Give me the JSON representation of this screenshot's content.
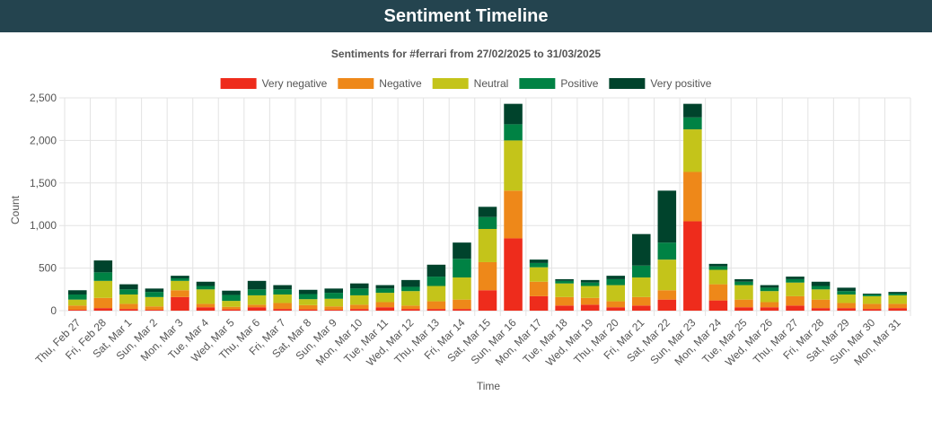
{
  "header": {
    "title": "Sentiment Timeline"
  },
  "chart_data": {
    "type": "bar",
    "stacked": true,
    "title": "Sentiments for #ferrari from 27/02/2025 to 31/03/2025",
    "xlabel": "Time",
    "ylabel": "Count",
    "ylim": [
      0,
      2500
    ],
    "yticks": [
      0,
      500,
      1000,
      1500,
      2000,
      2500
    ],
    "ytick_labels": [
      "0",
      "500",
      "1,000",
      "1,500",
      "2,000",
      "2,500"
    ],
    "grid": true,
    "legend_position": "top",
    "categories": [
      "Thu, Feb 27",
      "Fri, Feb 28",
      "Sat, Mar 1",
      "Sun, Mar 2",
      "Mon, Mar 3",
      "Tue, Mar 4",
      "Wed, Mar 5",
      "Thu, Mar 6",
      "Fri, Mar 7",
      "Sat, Mar 8",
      "Sun, Mar 9",
      "Mon, Mar 10",
      "Tue, Mar 11",
      "Wed, Mar 12",
      "Thu, Mar 13",
      "Fri, Mar 14",
      "Sat, Mar 15",
      "Sun, Mar 16",
      "Mon, Mar 17",
      "Tue, Mar 18",
      "Wed, Mar 19",
      "Thu, Mar 20",
      "Fri, Mar 21",
      "Sat, Mar 22",
      "Sun, Mar 23",
      "Mon, Mar 24",
      "Tue, Mar 25",
      "Wed, Mar 26",
      "Thu, Mar 27",
      "Fri, Mar 28",
      "Sat, Mar 29",
      "Sun, Mar 30",
      "Mon, Mar 31"
    ],
    "series": [
      {
        "name": "Very negative",
        "color": "#ee2c1c",
        "values": [
          10,
          30,
          20,
          10,
          160,
          40,
          15,
          40,
          20,
          15,
          10,
          20,
          40,
          20,
          20,
          20,
          240,
          850,
          170,
          60,
          70,
          40,
          60,
          130,
          1050,
          120,
          40,
          40,
          60,
          30,
          30,
          20,
          30
        ]
      },
      {
        "name": "Negative",
        "color": "#ee8819",
        "values": [
          50,
          120,
          60,
          40,
          80,
          40,
          30,
          30,
          70,
          50,
          40,
          50,
          60,
          40,
          90,
          110,
          330,
          560,
          170,
          100,
          80,
          70,
          100,
          110,
          580,
          190,
          90,
          60,
          110,
          100,
          60,
          60,
          50
        ]
      },
      {
        "name": "Neutral",
        "color": "#c4c41a",
        "values": [
          70,
          200,
          110,
          110,
          110,
          170,
          70,
          110,
          100,
          70,
          90,
          110,
          110,
          170,
          180,
          260,
          390,
          590,
          170,
          160,
          140,
          190,
          230,
          360,
          500,
          170,
          170,
          130,
          160,
          120,
          100,
          90,
          100
        ]
      },
      {
        "name": "Positive",
        "color": "#008244",
        "values": [
          60,
          100,
          60,
          60,
          30,
          40,
          70,
          70,
          60,
          60,
          70,
          80,
          50,
          50,
          110,
          220,
          140,
          190,
          50,
          30,
          40,
          70,
          140,
          200,
          140,
          40,
          40,
          40,
          40,
          40,
          40,
          20,
          20
        ]
      },
      {
        "name": "Very positive",
        "color": "#00432c",
        "values": [
          50,
          140,
          60,
          40,
          30,
          50,
          50,
          100,
          50,
          50,
          50,
          60,
          40,
          80,
          140,
          190,
          120,
          240,
          40,
          20,
          30,
          40,
          370,
          610,
          160,
          30,
          30,
          30,
          30,
          50,
          40,
          10,
          20
        ]
      }
    ]
  }
}
